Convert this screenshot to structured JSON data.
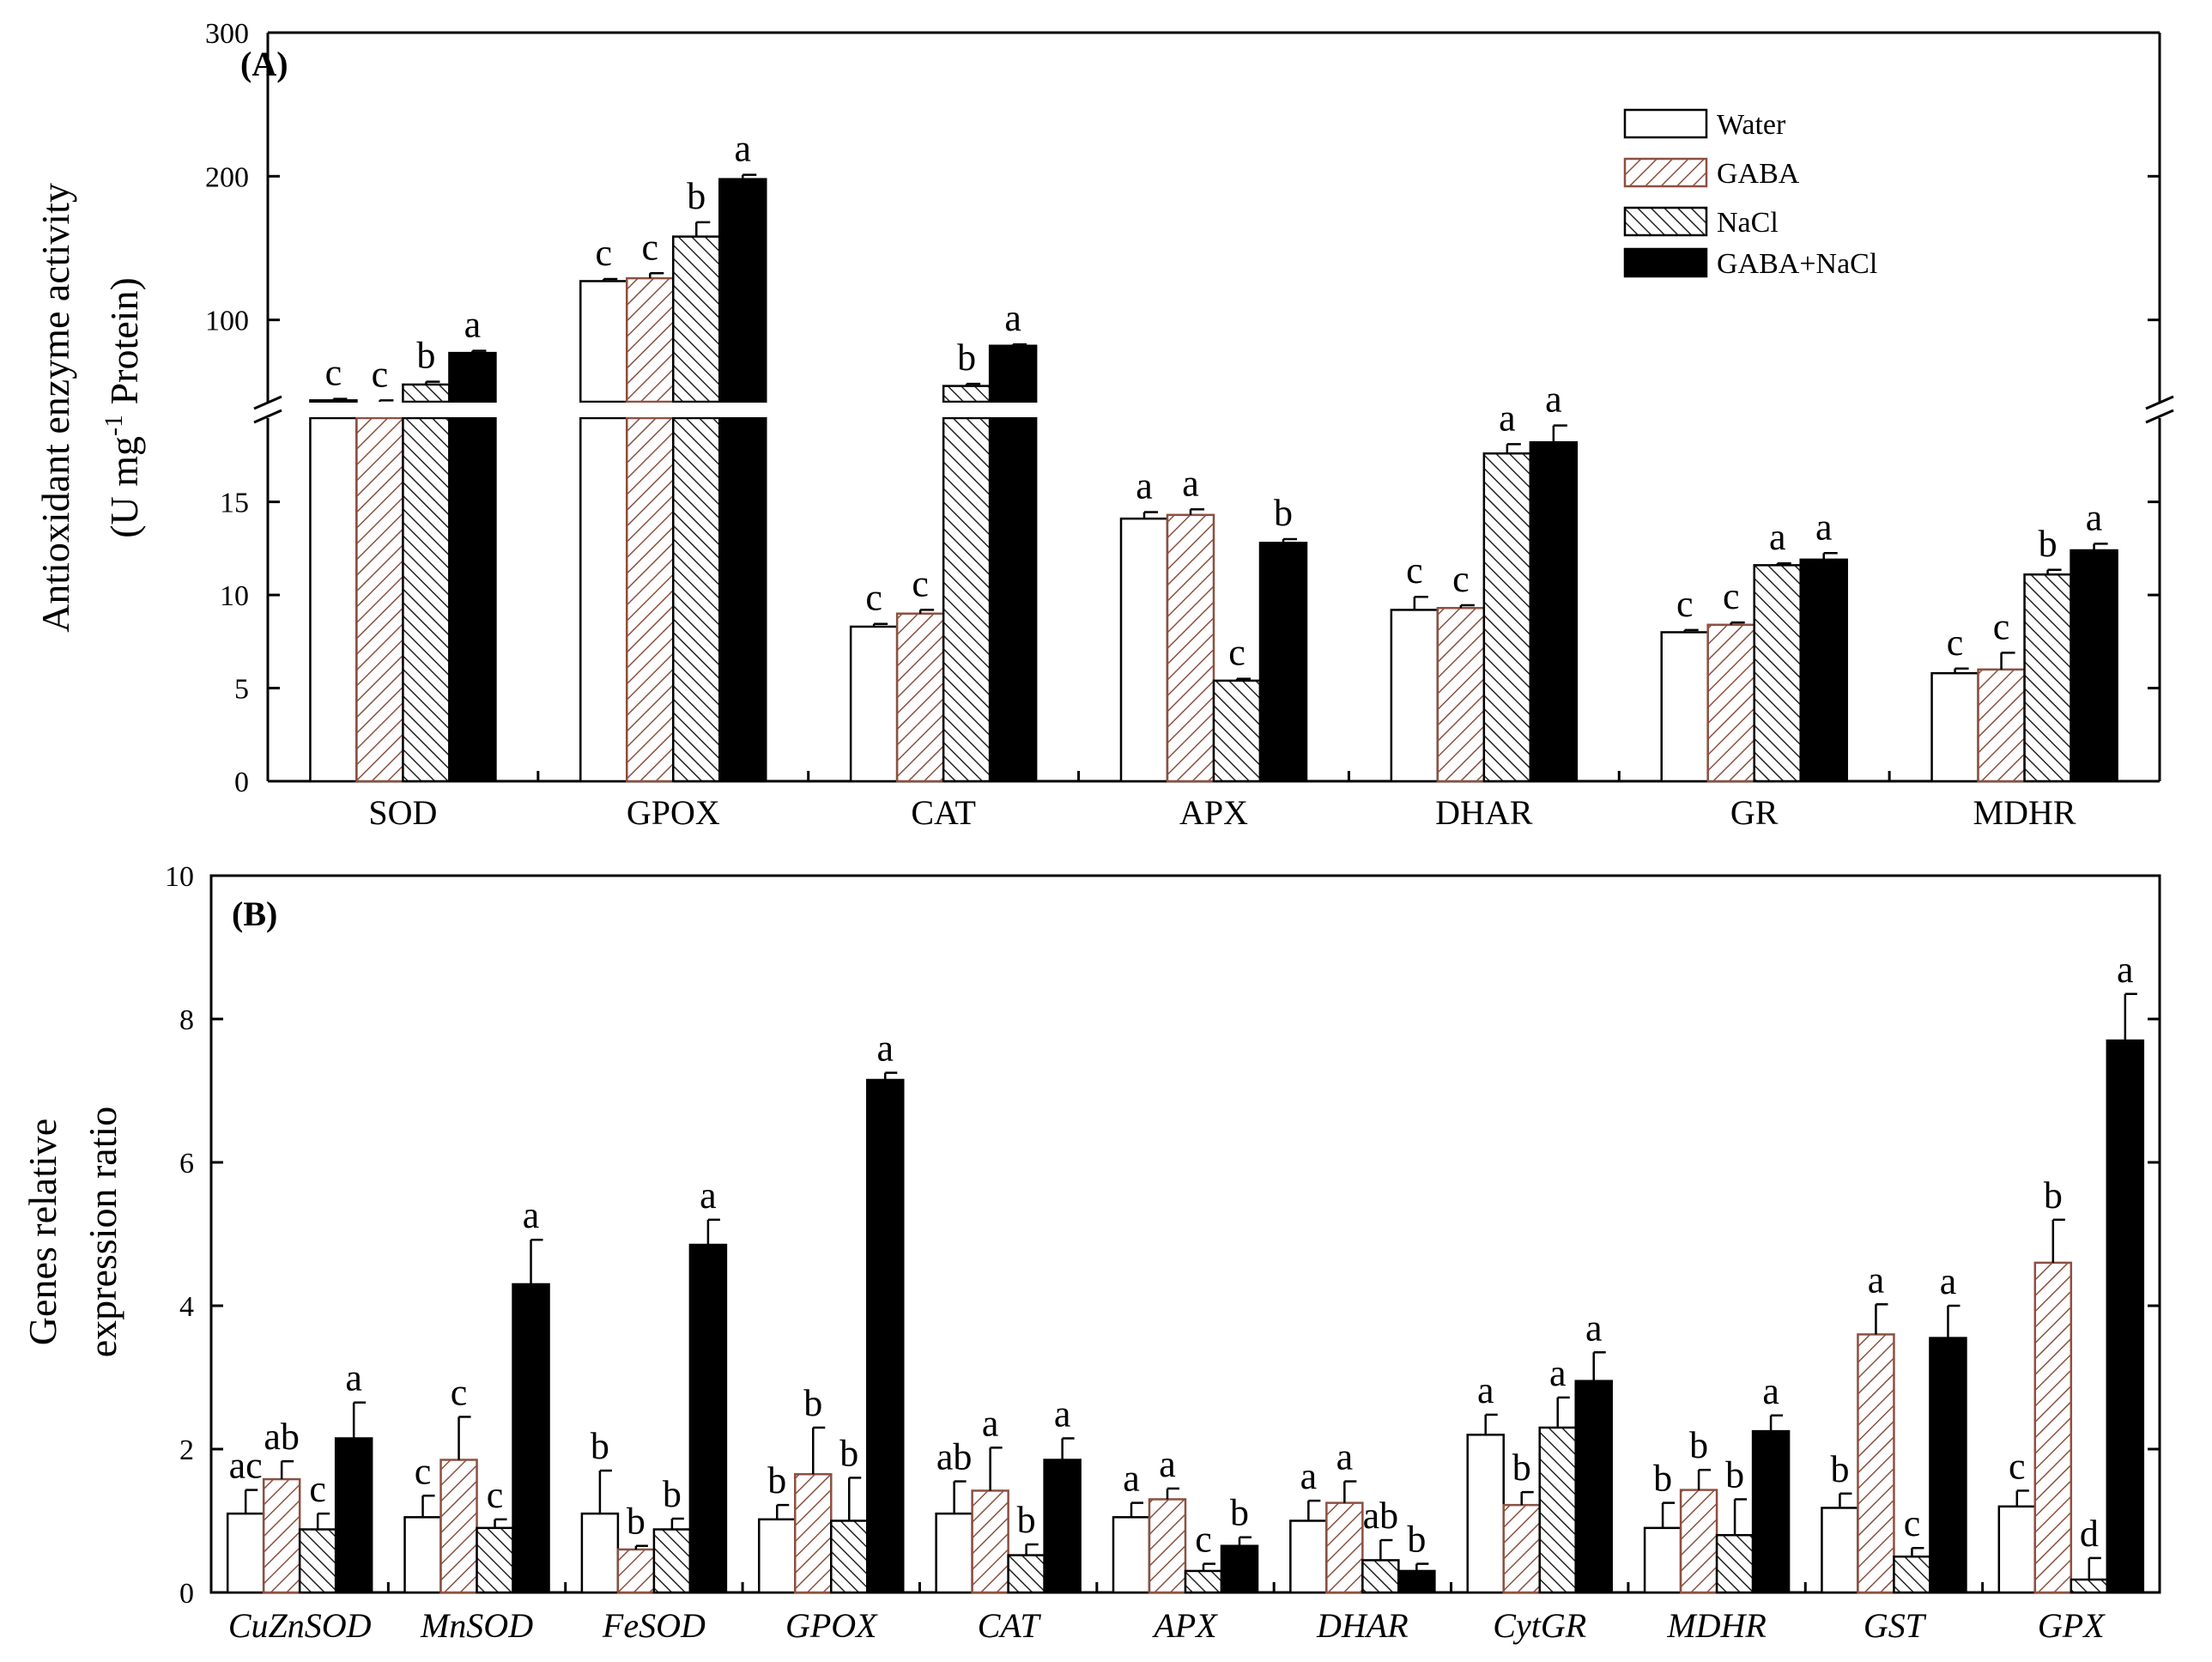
{
  "colors": {
    "water": "#ffffff",
    "gaba": "#9a5a4a",
    "nacl": "#222222",
    "gaba_nacl": "#000000",
    "axis": "#000000"
  },
  "legend": {
    "placement": "top-right",
    "items": [
      "Water",
      "GABA",
      "NaCl",
      "GABA+NaCl"
    ]
  },
  "chart_data": [
    {
      "type": "bar",
      "panel_label": "(A)",
      "ylabel_line1": "Antioxidant enzyme activity",
      "ylabel_line2_pre": "(U mg",
      "ylabel_line2_sup": "-1",
      "ylabel_line2_post": " Protein)",
      "broken_axis": true,
      "ylim_lower": [
        0,
        19.5
      ],
      "ylim_upper": [
        43,
        300
      ],
      "yticks_lower": [
        "0",
        "5",
        "10",
        "15"
      ],
      "yticks_upper": [
        "100",
        "200",
        "300"
      ],
      "categories": [
        "SOD",
        "GPOX",
        "CAT",
        "APX",
        "DHAR",
        "GR",
        "MDHR"
      ],
      "series": [
        {
          "name": "Water",
          "values": [
            44,
            127,
            8.3,
            14.1,
            9.2,
            8.0,
            5.8
          ],
          "errors": [
            1,
            1.5,
            0.15,
            0.35,
            0.7,
            0.12,
            0.25
          ],
          "letters": [
            "c",
            "c",
            "c",
            "a",
            "c",
            "c",
            "c"
          ]
        },
        {
          "name": "GABA",
          "values": [
            43,
            129,
            9.0,
            14.3,
            9.3,
            8.4,
            6.0
          ],
          "errors": [
            1,
            3.5,
            0.2,
            0.3,
            0.15,
            0.12,
            0.9
          ],
          "letters": [
            "c",
            "c",
            "c",
            "a",
            "c",
            "c",
            "c"
          ]
        },
        {
          "name": "NaCl",
          "values": [
            55,
            158,
            54,
            5.4,
            17.6,
            11.6,
            11.1
          ],
          "errors": [
            2,
            10,
            1.5,
            0.1,
            0.5,
            0.1,
            0.25
          ],
          "letters": [
            "b",
            "b",
            "b",
            "c",
            "a",
            "a",
            "b"
          ]
        },
        {
          "name": "GABA+NaCl",
          "values": [
            77,
            198,
            82,
            12.8,
            18.2,
            11.9,
            12.4
          ],
          "errors": [
            1.5,
            3,
            1,
            0.2,
            0.9,
            0.35,
            0.35
          ],
          "letters": [
            "a",
            "a",
            "a",
            "b",
            "a",
            "a",
            "a"
          ]
        }
      ]
    },
    {
      "type": "bar",
      "panel_label": "(B)",
      "ylabel_line1": "Genes relative",
      "ylabel_line2": "expression ratio",
      "ylim": [
        0,
        10
      ],
      "yticks": [
        "0",
        "2",
        "4",
        "6",
        "8",
        "10"
      ],
      "italic_categories": true,
      "categories": [
        "CuZnSOD",
        "MnSOD",
        "FeSOD",
        "GPOX",
        "CAT",
        "APX",
        "DHAR",
        "CytGR",
        "MDHR",
        "GST",
        "GPX"
      ],
      "series": [
        {
          "name": "Water",
          "values": [
            1.1,
            1.05,
            1.1,
            1.02,
            1.1,
            1.05,
            1.0,
            2.2,
            0.9,
            1.18,
            1.2
          ],
          "errors": [
            0.33,
            0.3,
            0.6,
            0.2,
            0.45,
            0.2,
            0.28,
            0.28,
            0.35,
            0.2,
            0.22
          ],
          "letters": [
            "ac",
            "c",
            "b",
            "b",
            "ab",
            "a",
            "a",
            "a",
            "b",
            "b",
            "c"
          ]
        },
        {
          "name": "GABA",
          "values": [
            1.58,
            1.85,
            0.6,
            1.65,
            1.42,
            1.3,
            1.25,
            1.22,
            1.43,
            3.6,
            4.6
          ],
          "errors": [
            0.25,
            0.6,
            0.05,
            0.65,
            0.6,
            0.15,
            0.3,
            0.18,
            0.28,
            0.42,
            0.6
          ],
          "letters": [
            "ab",
            "c",
            "b",
            "b",
            "a",
            "a",
            "a",
            "b",
            "b",
            "a",
            "b"
          ]
        },
        {
          "name": "NaCl",
          "values": [
            0.88,
            0.9,
            0.88,
            1.0,
            0.52,
            0.3,
            0.45,
            2.3,
            0.8,
            0.5,
            0.18
          ],
          "errors": [
            0.22,
            0.12,
            0.15,
            0.6,
            0.15,
            0.1,
            0.28,
            0.42,
            0.5,
            0.12,
            0.3
          ],
          "letters": [
            "c",
            "c",
            "b",
            "b",
            "b",
            "c",
            "ab",
            "a",
            "b",
            "c",
            "d"
          ]
        },
        {
          "name": "GABA+NaCl",
          "values": [
            2.15,
            4.3,
            4.85,
            7.15,
            1.85,
            0.65,
            0.3,
            2.95,
            2.25,
            3.55,
            7.7
          ],
          "errors": [
            0.5,
            0.62,
            0.35,
            0.1,
            0.3,
            0.12,
            0.1,
            0.4,
            0.22,
            0.45,
            0.65
          ],
          "letters": [
            "a",
            "a",
            "a",
            "a",
            "a",
            "b",
            "b",
            "a",
            "a",
            "a",
            "a"
          ]
        }
      ]
    }
  ]
}
